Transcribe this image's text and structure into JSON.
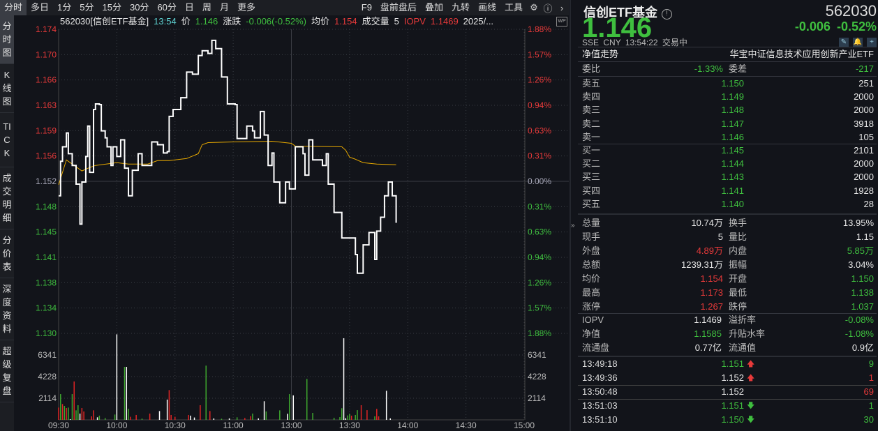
{
  "toolbar": {
    "tabs": [
      "分时",
      "多日",
      "1分",
      "5分",
      "15分",
      "30分",
      "60分",
      "日",
      "周",
      "月",
      "更多"
    ],
    "active": "分时",
    "right": [
      "F9",
      "盘前盘后",
      "叠加",
      "九转",
      "画线",
      "工具"
    ]
  },
  "sidebar": {
    "items": [
      "分时图",
      "K线图",
      "TICK",
      "成交明细",
      "分价表",
      "深度资料",
      "超级复盘"
    ],
    "active": "分时图"
  },
  "infobar": {
    "name": "562030[信创ETF基金]",
    "time": "13:54",
    "price_label": "价",
    "price": "1.146",
    "change_label": "涨跌",
    "change": "-0.006(-0.52%)",
    "avg_label": "均价",
    "avg": "1.154",
    "vol_label": "成交量",
    "vol": "5",
    "iopv_label": "IOPV",
    "iopv": "1.1469",
    "date": "2025/..."
  },
  "colors": {
    "up": "#e02424",
    "down": "#3ea82e",
    "flat": "#ffffff",
    "avg_line": "#e6a800",
    "bg": "#12141a"
  },
  "chart_data": {
    "type": "line",
    "prev_close": 1.152,
    "ylim": [
      1.13,
      1.174
    ],
    "y_ticks": [
      "1.174",
      "1.170",
      "1.166",
      "1.163",
      "1.159",
      "1.156",
      "1.152",
      "1.148",
      "1.145",
      "1.141",
      "1.138",
      "1.134",
      "1.130"
    ],
    "pct_ticks": [
      "1.88%",
      "1.57%",
      "1.26%",
      "0.94%",
      "0.63%",
      "0.31%",
      "0.00%",
      "0.31%",
      "0.63%",
      "0.94%",
      "1.26%",
      "1.57%",
      "1.88%"
    ],
    "x_ticks": [
      "09:30",
      "10:00",
      "10:30",
      "11:00",
      "13:00",
      "13:30",
      "14:00",
      "14:30",
      "15:00"
    ],
    "price": [
      [
        "09:30",
        1.1499
      ],
      [
        "09:31",
        1.1549
      ],
      [
        "09:32",
        1.157
      ],
      [
        "09:34",
        1.159
      ],
      [
        "09:35",
        1.156
      ],
      [
        "09:37",
        1.1543
      ],
      [
        "09:39",
        1.1516
      ],
      [
        "09:41",
        1.1458
      ],
      [
        "09:42",
        1.1519
      ],
      [
        "09:44",
        1.1556
      ],
      [
        "09:45",
        1.16
      ],
      [
        "09:46",
        1.1533
      ],
      [
        "09:48",
        1.1624
      ],
      [
        "09:49",
        1.1632
      ],
      [
        "09:51",
        1.1631
      ],
      [
        "09:52",
        1.1593
      ],
      [
        "09:54",
        1.1583
      ],
      [
        "09:55",
        1.157
      ],
      [
        "09:57",
        1.1543
      ],
      [
        "09:58",
        1.157
      ],
      [
        "10:00",
        1.1556
      ],
      [
        "10:02",
        1.158
      ],
      [
        "10:04",
        1.1539
      ],
      [
        "10:06",
        1.1499
      ],
      [
        "10:08",
        1.1536
      ],
      [
        "10:11",
        1.156
      ],
      [
        "10:13",
        1.1543
      ],
      [
        "10:16",
        1.1543
      ],
      [
        "10:18",
        1.1577
      ],
      [
        "10:21",
        1.1573
      ],
      [
        "10:24",
        1.1561
      ],
      [
        "10:26",
        1.1563
      ],
      [
        "10:27",
        1.1614
      ],
      [
        "10:29",
        1.1624
      ],
      [
        "10:31",
        1.1624
      ],
      [
        "10:33",
        1.1641
      ],
      [
        "10:36",
        1.1678
      ],
      [
        "10:39",
        1.1675
      ],
      [
        "10:42",
        1.1702
      ],
      [
        "10:44",
        1.1709
      ],
      [
        "10:47",
        1.1705
      ],
      [
        "10:49",
        1.1724
      ],
      [
        "10:51",
        1.1712
      ],
      [
        "10:53",
        1.1712
      ],
      [
        "10:54",
        1.1671
      ],
      [
        "10:57",
        1.1632
      ],
      [
        "11:01",
        1.1631
      ],
      [
        "11:02",
        1.1582
      ],
      [
        "11:05",
        1.1582
      ],
      [
        "11:07",
        1.16
      ],
      [
        "11:10",
        1.1593
      ],
      [
        "11:11",
        1.1583
      ],
      [
        "11:14",
        1.1621
      ],
      [
        "11:16",
        1.1587
      ],
      [
        "11:18",
        1.1543
      ],
      [
        "11:20",
        1.1561
      ],
      [
        "11:21",
        1.1519
      ],
      [
        "11:24",
        1.1489
      ],
      [
        "11:27",
        1.1519
      ],
      [
        "11:29",
        1.1509
      ],
      [
        "13:01",
        1.1509
      ],
      [
        "13:02",
        1.157
      ],
      [
        "13:06",
        1.156
      ],
      [
        "13:07",
        1.1529
      ],
      [
        "13:09",
        1.158
      ],
      [
        "13:11",
        1.1551
      ],
      [
        "13:15",
        1.1551
      ],
      [
        "13:16",
        1.1543
      ],
      [
        "13:18",
        1.156
      ],
      [
        "13:19",
        1.1516
      ],
      [
        "13:22",
        1.1475
      ],
      [
        "13:26",
        1.1438
      ],
      [
        "13:29",
        1.1438
      ],
      [
        "13:31",
        1.1438
      ],
      [
        "13:33",
        1.1414
      ],
      [
        "13:34",
        1.1387
      ],
      [
        "13:37",
        1.1428
      ],
      [
        "13:40",
        1.1446
      ],
      [
        "13:42",
        1.1446
      ],
      [
        "13:43",
        1.1407
      ],
      [
        "13:44",
        1.1448
      ],
      [
        "13:46",
        1.1468
      ],
      [
        "13:48",
        1.1499
      ],
      [
        "13:50",
        1.1519
      ],
      [
        "13:52",
        1.1499
      ],
      [
        "13:53",
        1.1499
      ],
      [
        "13:54",
        1.146
      ]
    ],
    "avg": [
      [
        "09:30",
        1.1515
      ],
      [
        "09:34",
        1.1551
      ],
      [
        "09:42",
        1.1535
      ],
      [
        "09:46",
        1.154
      ],
      [
        "09:49",
        1.1543
      ],
      [
        "10:00",
        1.1547
      ],
      [
        "10:06",
        1.1545
      ],
      [
        "10:16",
        1.1545
      ],
      [
        "10:21",
        1.155
      ],
      [
        "10:27",
        1.155
      ],
      [
        "10:36",
        1.1553
      ],
      [
        "10:42",
        1.156
      ],
      [
        "10:44",
        1.1573
      ],
      [
        "10:47",
        1.1576
      ],
      [
        "11:00",
        1.1577
      ],
      [
        "11:20",
        1.1578
      ],
      [
        "13:00",
        1.1575
      ],
      [
        "13:02",
        1.1571
      ],
      [
        "13:26",
        1.157
      ],
      [
        "13:28",
        1.1565
      ],
      [
        "13:30",
        1.1555
      ],
      [
        "13:33",
        1.1552
      ],
      [
        "13:37",
        1.1547
      ],
      [
        "13:44",
        1.1545
      ],
      [
        "13:54",
        1.1544
      ]
    ],
    "volume_ticks": [
      "6341",
      "4228",
      "2114"
    ],
    "volume_max": 8455,
    "volume": [
      [
        "09:30",
        1200,
        "up"
      ],
      [
        "09:31",
        2520,
        "down"
      ],
      [
        "09:32",
        1550,
        "up"
      ],
      [
        "09:33",
        1360,
        "down"
      ],
      [
        "09:34",
        1160,
        "up"
      ],
      [
        "09:35",
        1200,
        "down"
      ],
      [
        "09:36",
        70,
        "flat"
      ],
      [
        "09:37",
        2520,
        "down"
      ],
      [
        "09:38",
        3750,
        "up"
      ],
      [
        "09:39",
        930,
        "down"
      ],
      [
        "09:40",
        1430,
        "down"
      ],
      [
        "09:41",
        610,
        "flat"
      ],
      [
        "09:42",
        1160,
        "up"
      ],
      [
        "09:43",
        820,
        "up"
      ],
      [
        "09:47",
        340,
        "up"
      ],
      [
        "09:48",
        930,
        "up"
      ],
      [
        "09:50",
        250,
        "flat"
      ],
      [
        "09:51",
        410,
        "down"
      ],
      [
        "09:54",
        180,
        "down"
      ],
      [
        "09:59",
        520,
        "down"
      ],
      [
        "10:00",
        8360,
        "flat"
      ],
      [
        "10:04",
        5180,
        "down"
      ],
      [
        "10:05",
        5180,
        "flat"
      ],
      [
        "10:06",
        1090,
        "down"
      ],
      [
        "10:07",
        300,
        "up"
      ],
      [
        "10:10",
        480,
        "up"
      ],
      [
        "10:13",
        120,
        "down"
      ],
      [
        "10:17",
        610,
        "up"
      ],
      [
        "10:22",
        860,
        "flat"
      ],
      [
        "10:26",
        1980,
        "flat"
      ],
      [
        "10:27",
        2910,
        "up"
      ],
      [
        "10:28",
        480,
        "up"
      ],
      [
        "10:30",
        300,
        "up"
      ],
      [
        "10:37",
        480,
        "up"
      ],
      [
        "10:38",
        410,
        "flat"
      ],
      [
        "10:40",
        230,
        "flat"
      ],
      [
        "10:43",
        1430,
        "up"
      ],
      [
        "10:46",
        5300,
        "down"
      ],
      [
        "10:48",
        860,
        "up"
      ],
      [
        "10:50",
        140,
        "flat"
      ],
      [
        "10:54",
        110,
        "down"
      ],
      [
        "10:58",
        140,
        "flat"
      ],
      [
        "11:02",
        250,
        "down"
      ],
      [
        "11:06",
        180,
        "up"
      ],
      [
        "11:09",
        360,
        "up"
      ],
      [
        "11:10",
        610,
        "down"
      ],
      [
        "11:13",
        140,
        "flat"
      ],
      [
        "11:16",
        1820,
        "flat"
      ],
      [
        "11:17",
        820,
        "down"
      ],
      [
        "11:24",
        930,
        "down"
      ],
      [
        "11:28",
        590,
        "flat"
      ],
      [
        "11:29",
        2520,
        "down"
      ],
      [
        "13:01",
        2390,
        "flat"
      ],
      [
        "13:08",
        4000,
        "down"
      ],
      [
        "13:11",
        680,
        "down"
      ],
      [
        "13:22",
        200,
        "down"
      ],
      [
        "13:25",
        270,
        "down"
      ],
      [
        "13:26",
        1140,
        "down"
      ],
      [
        "13:27",
        7980,
        "flat"
      ],
      [
        "13:28",
        160,
        "flat"
      ],
      [
        "13:29",
        430,
        "down"
      ],
      [
        "13:30",
        590,
        "down"
      ],
      [
        "13:31",
        410,
        "up"
      ],
      [
        "13:33",
        480,
        "down"
      ],
      [
        "13:34",
        950,
        "down"
      ],
      [
        "13:36",
        1430,
        "up"
      ],
      [
        "13:39",
        950,
        "up"
      ],
      [
        "13:43",
        340,
        "down"
      ],
      [
        "13:44",
        1070,
        "up"
      ],
      [
        "13:45",
        340,
        "up"
      ],
      [
        "13:49",
        2840,
        "flat"
      ],
      [
        "13:51",
        140,
        "flat"
      ]
    ]
  },
  "quote": {
    "name": "信创ETF基金",
    "code": "562030",
    "price": "1.146",
    "change": "-0.006",
    "change_pct": "-0.52%",
    "exchange": "SSE",
    "currency": "CNY",
    "time": "13:54:22",
    "status": "交易中",
    "nav_trend": "净值走势",
    "fund_full_name": "华宝中证信息技术应用创新产业ETF"
  },
  "ratio": {
    "l1": "委比",
    "v1": "-1.33%",
    "l2": "委差",
    "v2": "-217"
  },
  "asks": [
    {
      "label": "卖五",
      "price": "1.150",
      "vol": "251"
    },
    {
      "label": "卖四",
      "price": "1.149",
      "vol": "2000"
    },
    {
      "label": "卖三",
      "price": "1.148",
      "vol": "2000"
    },
    {
      "label": "卖二",
      "price": "1.147",
      "vol": "3918"
    },
    {
      "label": "卖一",
      "price": "1.146",
      "vol": "105"
    }
  ],
  "bids": [
    {
      "label": "买一",
      "price": "1.145",
      "vol": "2101"
    },
    {
      "label": "买二",
      "price": "1.144",
      "vol": "2000"
    },
    {
      "label": "买三",
      "price": "1.143",
      "vol": "2000"
    },
    {
      "label": "买四",
      "price": "1.141",
      "vol": "1928"
    },
    {
      "label": "买五",
      "price": "1.140",
      "vol": "28"
    }
  ],
  "stats": [
    {
      "l1": "总量",
      "v1": "10.74万",
      "c1": "w",
      "l2": "换手",
      "v2": "13.95%",
      "c2": "w"
    },
    {
      "l1": "现手",
      "v1": "5",
      "c1": "w",
      "l2": "量比",
      "v2": "1.15",
      "c2": "w"
    },
    {
      "l1": "外盘",
      "v1": "4.89万",
      "c1": "r",
      "l2": "内盘",
      "v2": "5.85万",
      "c2": "g"
    },
    {
      "l1": "总额",
      "v1": "1239.31万",
      "c1": "w",
      "l2": "振幅",
      "v2": "3.04%",
      "c2": "w"
    },
    {
      "l1": "均价",
      "v1": "1.154",
      "c1": "r",
      "l2": "开盘",
      "v2": "1.150",
      "c2": "g"
    },
    {
      "l1": "最高",
      "v1": "1.173",
      "c1": "r",
      "l2": "最低",
      "v2": "1.138",
      "c2": "g"
    },
    {
      "l1": "涨停",
      "v1": "1.267",
      "c1": "r",
      "l2": "跌停",
      "v2": "1.037",
      "c2": "g"
    }
  ],
  "fund": [
    {
      "l1": "IOPV",
      "v1": "1.1469",
      "c1": "w",
      "l2": "溢折率",
      "v2": "-0.08%",
      "c2": "g"
    },
    {
      "l1": "净值",
      "v1": "1.1585",
      "c1": "g",
      "l2": "升贴水率",
      "v2": "-1.08%",
      "c2": "g"
    },
    {
      "l1": "流通盘",
      "v1": "0.77亿",
      "c1": "w",
      "l2": "流通值",
      "v2": "0.9亿",
      "c2": "w"
    }
  ],
  "trades": [
    {
      "time": "13:49:18",
      "price": "1.151",
      "pc": "g",
      "arrow": "up",
      "vol": "9",
      "vc": "g"
    },
    {
      "time": "13:49:36",
      "price": "1.152",
      "pc": "w",
      "arrow": "up",
      "vol": "1",
      "vc": "r"
    },
    {
      "time": "13:50:48",
      "price": "1.152",
      "pc": "w",
      "arrow": "",
      "vol": "69",
      "vc": "r"
    },
    {
      "time": "13:51:03",
      "price": "1.151",
      "pc": "g",
      "arrow": "down",
      "vol": "1",
      "vc": "g"
    },
    {
      "time": "13:51:10",
      "price": "1.150",
      "pc": "g",
      "arrow": "down",
      "vol": "30",
      "vc": "g"
    }
  ]
}
